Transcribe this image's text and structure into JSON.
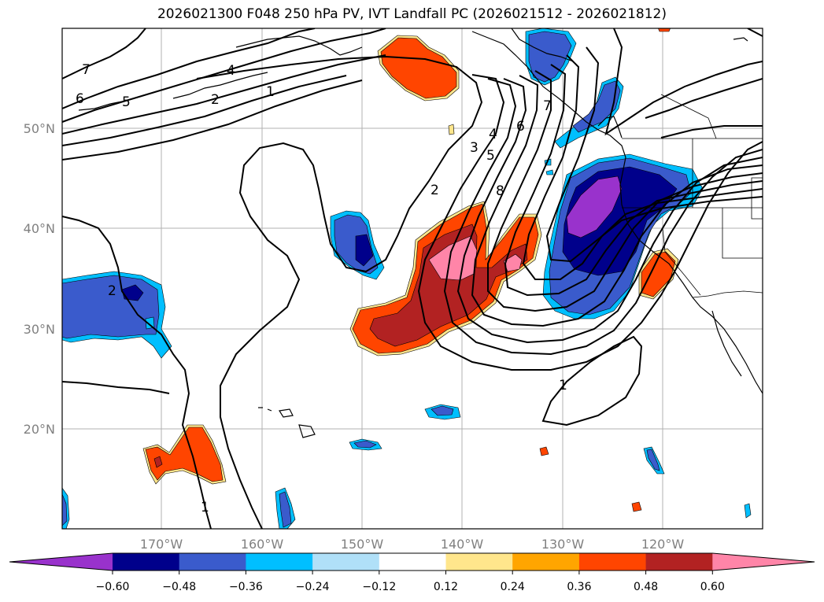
{
  "title": "2026021300 F048 250 hPa PV, IVT Landfall PC (2026021512 - 2026021812)",
  "lon_labels": [
    "170°W",
    "160°W",
    "150°W",
    "140°W",
    "130°W",
    "120°W"
  ],
  "lat_labels": [
    "50°N",
    "40°N",
    "30°N",
    "20°N"
  ],
  "colorbar": {
    "ticks": [
      "−0.60",
      "−0.48",
      "−0.36",
      "−0.24",
      "−0.12",
      "0.12",
      "0.24",
      "0.36",
      "0.48",
      "0.60"
    ],
    "colors": [
      "#9932cc",
      "#00008b",
      "#3a5bcc",
      "#00bfff",
      "#b0e0f8",
      "#ffffff",
      "#ffe68c",
      "#ffa500",
      "#ff4500",
      "#b22222",
      "#ff85a8"
    ]
  },
  "contour_labels": [
    "7",
    "6",
    "5",
    "4",
    "2",
    "1",
    "2",
    "3",
    "4",
    "5",
    "6",
    "8",
    "7",
    "2",
    "1",
    "1"
  ]
}
